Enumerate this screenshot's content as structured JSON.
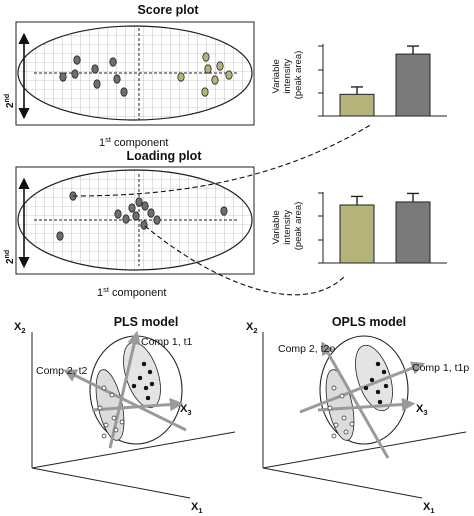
{
  "score": {
    "title": "Score plot",
    "xlabel_base": "1",
    "xlabel_sup": "st",
    "xlabel_rest": " component",
    "ylabel_base": "2",
    "ylabel_sup": "nd"
  },
  "loading": {
    "title": "Loading plot",
    "xlabel_base": "1",
    "xlabel_sup": "st",
    "xlabel_rest": " component",
    "ylabel_base": "2",
    "ylabel_sup": "nd"
  },
  "bars_top": {
    "ylabel1": "Variable",
    "ylabel2": "intensity",
    "ylabel3": "(peak area)",
    "values": [
      0.35,
      1.0
    ],
    "errors": [
      0.12,
      0.13
    ],
    "colors": [
      "#b5b27a",
      "#7a7a7a"
    ]
  },
  "bars_bottom": {
    "ylabel1": "Variable",
    "ylabel2": "intensity",
    "ylabel3": "(peak area)",
    "values": [
      0.95,
      1.0
    ],
    "errors": [
      0.14,
      0.14
    ],
    "colors": [
      "#b5b27a",
      "#7a7a7a"
    ]
  },
  "pls": {
    "title": "PLS model",
    "comp1": "Comp 1, t1",
    "comp2": "Comp 2, t2",
    "x1": "X",
    "x1_sub": "1",
    "x2": "X",
    "x2_sub": "2",
    "x3": "X",
    "x3_sub": "3"
  },
  "opls": {
    "title": "OPLS model",
    "comp1": "Comp 1, t1p",
    "comp2": "Comp 2, t2o",
    "x1": "X",
    "x1_sub": "1",
    "x2": "X",
    "x2_sub": "2",
    "x3": "X",
    "x3_sub": "3"
  },
  "colors": {
    "group_a": "#6e6e6e",
    "group_b": "#b5b27a",
    "ellipse_fill": "#dcdcdc",
    "arrow": "#9a9a9a"
  }
}
